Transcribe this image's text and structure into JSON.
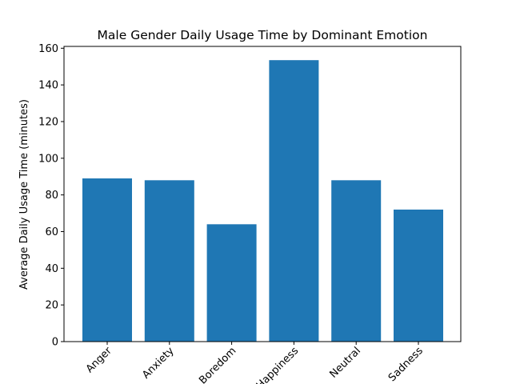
{
  "chart_data": {
    "type": "bar",
    "title": "Male Gender Daily Usage Time by Dominant Emotion",
    "xlabel": "",
    "ylabel": "Average Daily Usage Time (minutes)",
    "categories": [
      "Anger",
      "Anxiety",
      "Boredom",
      "Happiness",
      "Neutral",
      "Sadness"
    ],
    "values": [
      89,
      88,
      64,
      153.5,
      88,
      72
    ],
    "ylim": [
      0,
      161
    ],
    "yticks": [
      0,
      20,
      40,
      60,
      80,
      100,
      120,
      140,
      160
    ],
    "grid": false,
    "legend": "none",
    "colors": {
      "bar": "#1f77b4",
      "axis": "#000000"
    }
  }
}
